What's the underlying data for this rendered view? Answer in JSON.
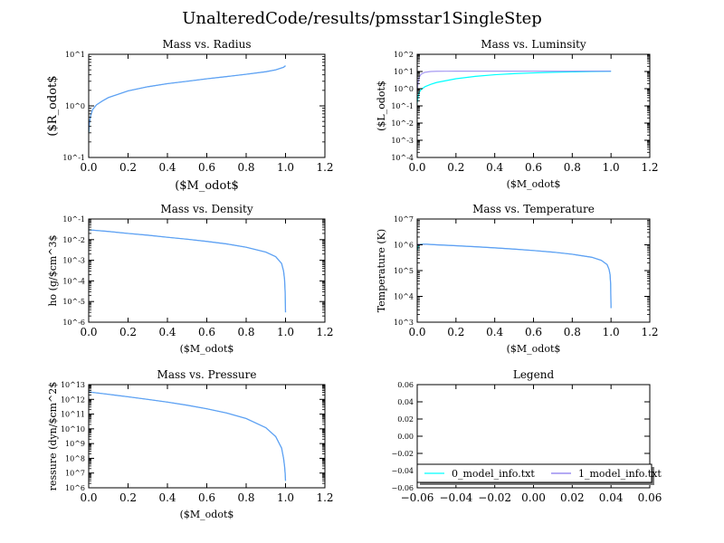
{
  "figure": {
    "suptitle": "UnalteredCode/results/pmsstar1SingleStep"
  },
  "colors": {
    "series0": "#00ffff",
    "series1": "#8877ee",
    "combined": "#4aa6e6",
    "axis": "#000000"
  },
  "chart_data": [
    {
      "id": "mass-radius",
      "type": "line",
      "title": "Mass vs. Radius",
      "xlabel": "($M_odot$",
      "ylabel": "($R_odot$",
      "xlim": [
        0.0,
        1.2
      ],
      "ylog": true,
      "ylim_exp": [
        -1,
        1
      ],
      "xticks": [
        "0.0",
        "0.2",
        "0.4",
        "0.6",
        "0.8",
        "1.0",
        "1.2"
      ],
      "yticks": [
        "10^-1",
        "10^0",
        "10^1"
      ],
      "series": [
        {
          "color": "#00ffff",
          "x": [
            0,
            0.002,
            0.005,
            0.01,
            0.02,
            0.04,
            0.07,
            0.1,
            0.2,
            0.3,
            0.4,
            0.5,
            0.6,
            0.7,
            0.8,
            0.9,
            0.95,
            0.99,
            1.0
          ],
          "y": [
            0.3,
            0.4,
            0.5,
            0.65,
            0.85,
            1.05,
            1.25,
            1.45,
            1.95,
            2.35,
            2.7,
            3.0,
            3.35,
            3.7,
            4.1,
            4.6,
            5.0,
            5.6,
            6.0
          ]
        },
        {
          "color": "#8877ee",
          "x": [
            0,
            0.002,
            0.005,
            0.01,
            0.02,
            0.04,
            0.07,
            0.1,
            0.2,
            0.3,
            0.4,
            0.5,
            0.6,
            0.7,
            0.8,
            0.9,
            0.95,
            0.99,
            1.0
          ],
          "y": [
            0.3,
            0.4,
            0.5,
            0.65,
            0.85,
            1.05,
            1.25,
            1.45,
            1.95,
            2.35,
            2.7,
            3.0,
            3.35,
            3.7,
            4.1,
            4.6,
            5.0,
            5.6,
            6.0
          ]
        }
      ]
    },
    {
      "id": "mass-luminosity",
      "type": "line",
      "title": "Mass vs. Luminsity",
      "xlabel": "($M_odot$",
      "ylabel": "($L_odot$",
      "xlim": [
        0.0,
        1.2
      ],
      "ylog": true,
      "ylim_exp": [
        -4,
        2
      ],
      "xticks": [
        "0.0",
        "0.2",
        "0.4",
        "0.6",
        "0.8",
        "1.0",
        "1.2"
      ],
      "yticks": [
        "10^-4",
        "10^-3",
        "10^-2",
        "10^-1",
        "10^0",
        "10^1",
        "10^2"
      ],
      "series": [
        {
          "color": "#00ffff",
          "x": [
            0,
            0.005,
            0.01,
            0.02,
            0.04,
            0.07,
            0.1,
            0.2,
            0.3,
            0.4,
            0.5,
            0.6,
            0.7,
            0.8,
            0.9,
            1.0
          ],
          "y": [
            0.15,
            0.35,
            0.6,
            0.9,
            1.3,
            1.8,
            2.3,
            3.8,
            5.2,
            6.5,
            7.5,
            8.3,
            9.0,
            9.5,
            10.0,
            10.3
          ]
        },
        {
          "color": "#8877ee",
          "x": [
            0,
            0.005,
            0.01,
            0.02,
            0.04,
            0.07,
            0.1,
            0.15,
            0.2,
            0.4,
            0.6,
            0.8,
            1.0
          ],
          "y": [
            0.8,
            2.5,
            4.5,
            7.0,
            9.0,
            10.0,
            10.3,
            10.4,
            10.5,
            10.5,
            10.5,
            10.5,
            10.5
          ]
        }
      ]
    },
    {
      "id": "mass-density",
      "type": "line",
      "title": "Mass vs. Density",
      "xlabel": "($M_odot$",
      "ylabel": "ho (g/$cm^3$",
      "xlim": [
        0.0,
        1.2
      ],
      "ylog": true,
      "ylim_exp": [
        -6,
        -1
      ],
      "xticks": [
        "0.0",
        "0.2",
        "0.4",
        "0.6",
        "0.8",
        "1.0",
        "1.2"
      ],
      "yticks": [
        "10^-6",
        "10^-5",
        "10^-4",
        "10^-3",
        "10^-2",
        "10^-1"
      ],
      "series": [
        {
          "color": "#00ffff",
          "x": [
            0,
            0.1,
            0.2,
            0.3,
            0.4,
            0.5,
            0.6,
            0.7,
            0.8,
            0.9,
            0.95,
            0.98,
            0.99,
            0.995,
            0.998,
            1.0
          ],
          "y": [
            0.03,
            0.025,
            0.02,
            0.0165,
            0.013,
            0.0105,
            0.0082,
            0.0062,
            0.0043,
            0.0025,
            0.0015,
            0.0007,
            0.0003,
            0.00012,
            3e-05,
            3e-06
          ]
        },
        {
          "color": "#8877ee",
          "x": [
            0,
            0.1,
            0.2,
            0.3,
            0.4,
            0.5,
            0.6,
            0.7,
            0.8,
            0.9,
            0.95,
            0.98,
            0.99,
            0.995,
            0.998,
            1.0
          ],
          "y": [
            0.03,
            0.025,
            0.02,
            0.0165,
            0.013,
            0.0105,
            0.0082,
            0.0062,
            0.0043,
            0.0025,
            0.0015,
            0.0007,
            0.0003,
            0.00012,
            3e-05,
            3e-06
          ]
        }
      ]
    },
    {
      "id": "mass-temperature",
      "type": "line",
      "title": "Mass vs. Temperature",
      "xlabel": "($M_odot$",
      "ylabel": "Temperature (K)",
      "xlim": [
        0.0,
        1.2
      ],
      "ylog": true,
      "ylim_exp": [
        3,
        7
      ],
      "xticks": [
        "0.0",
        "0.2",
        "0.4",
        "0.6",
        "0.8",
        "1.0",
        "1.2"
      ],
      "yticks": [
        "10^3",
        "10^4",
        "10^5",
        "10^6",
        "10^7"
      ],
      "series": [
        {
          "color": "#00ffff",
          "x": [
            0,
            0.005,
            0.01,
            0.02,
            0.05,
            0.1,
            0.2,
            0.3,
            0.4,
            0.5,
            0.6,
            0.7,
            0.8,
            0.9,
            0.95,
            0.98,
            0.99,
            0.995,
            0.998,
            1.0
          ],
          "y": [
            600000,
            850000,
            1000000,
            1050000,
            1050000,
            1000000,
            920000,
            840000,
            760000,
            680000,
            600000,
            520000,
            430000,
            330000,
            250000,
            170000,
            110000,
            70000,
            30000,
            3500
          ]
        },
        {
          "color": "#8877ee",
          "x": [
            0,
            0.005,
            0.01,
            0.02,
            0.05,
            0.1,
            0.2,
            0.3,
            0.4,
            0.5,
            0.6,
            0.7,
            0.8,
            0.9,
            0.95,
            0.98,
            0.99,
            0.995,
            0.998,
            1.0
          ],
          "y": [
            1050000,
            1050000,
            1050000,
            1050000,
            1050000,
            1000000,
            920000,
            840000,
            760000,
            680000,
            600000,
            520000,
            430000,
            330000,
            250000,
            170000,
            110000,
            70000,
            30000,
            3500
          ]
        }
      ]
    },
    {
      "id": "mass-pressure",
      "type": "line",
      "title": "Mass vs. Pressure",
      "xlabel": "($M_odot$",
      "ylabel": "ressure (dyn/$cm^2$",
      "xlim": [
        0.0,
        1.2
      ],
      "ylog": true,
      "ylim_exp": [
        6,
        13
      ],
      "xticks": [
        "0.0",
        "0.2",
        "0.4",
        "0.6",
        "0.8",
        "1.0",
        "1.2"
      ],
      "yticks": [
        "10^6",
        "10^7",
        "10^8",
        "10^9",
        "10^10",
        "10^11",
        "10^12",
        "10^13"
      ],
      "series": [
        {
          "color": "#00ffff",
          "x": [
            0,
            0.1,
            0.2,
            0.3,
            0.4,
            0.5,
            0.6,
            0.7,
            0.8,
            0.9,
            0.95,
            0.98,
            0.99,
            0.995,
            0.998,
            1.0
          ],
          "y": [
            3200000000000.0,
            2200000000000.0,
            1500000000000.0,
            1000000000000.0,
            650000000000.0,
            400000000000.0,
            230000000000.0,
            120000000000.0,
            50000000000.0,
            12000000000.0,
            3000000000.0,
            500000000.0,
            100000000.0,
            30000000.0,
            10000000.0,
            3000000.0
          ]
        },
        {
          "color": "#8877ee",
          "x": [
            0,
            0.1,
            0.2,
            0.3,
            0.4,
            0.5,
            0.6,
            0.7,
            0.8,
            0.9,
            0.95,
            0.98,
            0.99,
            0.995,
            0.998,
            1.0
          ],
          "y": [
            3200000000000.0,
            2200000000000.0,
            1500000000000.0,
            1000000000000.0,
            650000000000.0,
            400000000000.0,
            230000000000.0,
            120000000000.0,
            50000000000.0,
            12000000000.0,
            3000000000.0,
            500000000.0,
            100000000.0,
            30000000.0,
            10000000.0,
            3000000.0
          ]
        }
      ]
    },
    {
      "id": "legend-panel",
      "type": "line",
      "title": "Legend",
      "xlim": [
        -0.06,
        0.06
      ],
      "ylim": [
        -0.06,
        0.06
      ],
      "xticks": [
        "−0.06",
        "−0.04",
        "−0.02",
        "0.00",
        "0.02",
        "0.04",
        "0.06"
      ],
      "yticks": [
        "−0.06",
        "−0.04",
        "−0.02",
        "0.00",
        "0.02",
        "0.04",
        "0.06"
      ],
      "legend_placement": "bottom",
      "legend": [
        {
          "label": "0_model_info.txt",
          "color": "#00ffff"
        },
        {
          "label": "1_model_info.txt",
          "color": "#8877ee"
        }
      ]
    }
  ]
}
